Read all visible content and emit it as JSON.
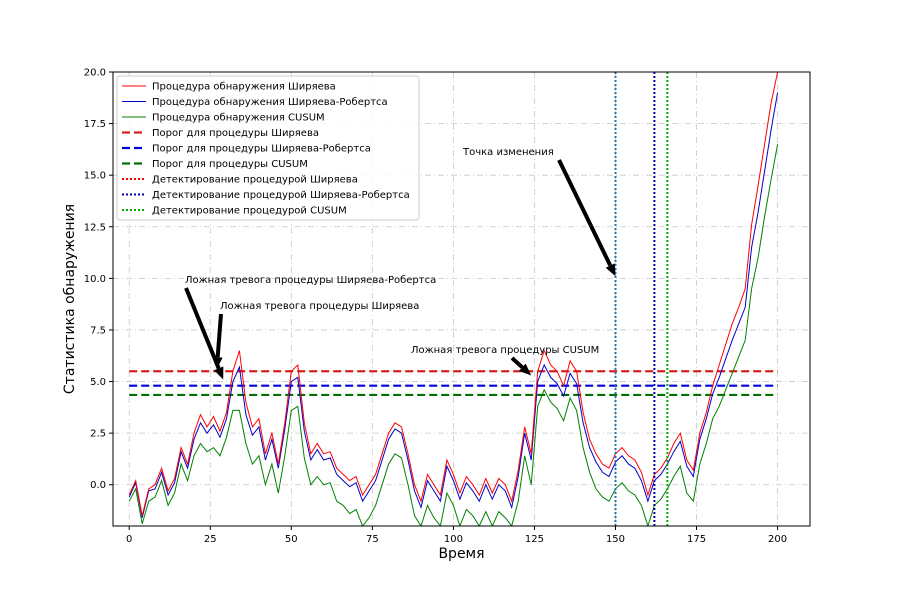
{
  "chart_data": {
    "type": "line",
    "title": "",
    "xlabel": "Время",
    "ylabel": "Статистика обнаружения",
    "xlim": [
      -5,
      210
    ],
    "ylim": [
      -2,
      20
    ],
    "xticks": [
      0,
      25,
      50,
      75,
      100,
      125,
      150,
      175,
      200
    ],
    "yticks": [
      0.0,
      2.5,
      5.0,
      7.5,
      10.0,
      12.5,
      15.0,
      17.5,
      20.0
    ],
    "ytick_labels": [
      "0.0",
      "2.5",
      "5.0",
      "7.5",
      "10.0",
      "12.5",
      "15.0",
      "17.5",
      "20.0"
    ],
    "grid": true,
    "legend_position": "top-left",
    "x": [
      0,
      2,
      4,
      6,
      8,
      10,
      12,
      14,
      16,
      18,
      20,
      22,
      24,
      26,
      28,
      30,
      32,
      34,
      36,
      38,
      40,
      42,
      44,
      46,
      48,
      50,
      52,
      54,
      56,
      58,
      60,
      62,
      64,
      66,
      68,
      70,
      72,
      74,
      76,
      78,
      80,
      82,
      84,
      86,
      88,
      90,
      92,
      94,
      96,
      98,
      100,
      102,
      104,
      106,
      108,
      110,
      112,
      114,
      116,
      118,
      120,
      122,
      124,
      126,
      128,
      130,
      132,
      134,
      136,
      138,
      140,
      142,
      144,
      146,
      148,
      150,
      152,
      154,
      156,
      158,
      160,
      162,
      164,
      166,
      168,
      170,
      172,
      174,
      176,
      178,
      180,
      182,
      184,
      186,
      188,
      190,
      192,
      194,
      196,
      198,
      200
    ],
    "series": [
      {
        "name": "Процедура обнаружения Ширяева",
        "color": "#ff0000",
        "style": "solid",
        "values": [
          -0.5,
          0.2,
          -1.5,
          -0.2,
          0.0,
          0.8,
          -0.3,
          0.3,
          1.8,
          1.0,
          2.5,
          3.4,
          2.8,
          3.3,
          2.6,
          3.5,
          5.5,
          6.5,
          4.0,
          2.8,
          3.2,
          1.5,
          2.5,
          1.0,
          3.0,
          5.5,
          5.8,
          3.0,
          1.5,
          2.0,
          1.5,
          1.6,
          0.8,
          0.5,
          0.2,
          0.4,
          -0.5,
          0.0,
          0.5,
          1.5,
          2.5,
          3.0,
          2.8,
          1.5,
          0.0,
          -0.8,
          0.5,
          0.0,
          -0.5,
          1.2,
          0.5,
          -0.4,
          0.4,
          0.0,
          -0.5,
          0.3,
          -0.4,
          0.3,
          0.0,
          -0.8,
          0.7,
          2.8,
          1.5,
          5.5,
          6.5,
          5.8,
          5.5,
          4.8,
          6.0,
          5.5,
          3.5,
          2.2,
          1.5,
          1.0,
          0.8,
          1.5,
          1.8,
          1.4,
          1.2,
          0.6,
          -0.5,
          0.5,
          0.8,
          1.3,
          2.0,
          2.5,
          1.2,
          0.7,
          2.5,
          3.5,
          4.8,
          5.8,
          6.8,
          7.8,
          8.6,
          9.5,
          12.6,
          14.5,
          16.5,
          18.5,
          20.0
        ]
      },
      {
        "name": "Процедура обнаружения Ширяева-Робертса",
        "color": "#0000cc",
        "style": "solid",
        "values": [
          -0.6,
          0.1,
          -1.6,
          -0.3,
          -0.2,
          0.6,
          -0.5,
          0.1,
          1.6,
          0.8,
          2.2,
          3.0,
          2.5,
          2.9,
          2.3,
          3.2,
          5.0,
          5.7,
          3.4,
          2.4,
          2.8,
          1.2,
          2.2,
          0.8,
          2.7,
          5.0,
          5.2,
          2.6,
          1.2,
          1.7,
          1.2,
          1.3,
          0.5,
          0.2,
          -0.1,
          0.1,
          -0.8,
          -0.3,
          0.2,
          1.2,
          2.2,
          2.7,
          2.5,
          1.2,
          -0.3,
          -1.1,
          0.2,
          -0.3,
          -0.8,
          0.9,
          0.2,
          -0.7,
          0.1,
          -0.3,
          -0.8,
          0.0,
          -0.7,
          0.0,
          -0.3,
          -1.1,
          0.4,
          2.5,
          1.2,
          5.0,
          5.8,
          5.2,
          4.9,
          4.3,
          5.4,
          4.9,
          3.0,
          1.8,
          1.1,
          0.6,
          0.4,
          1.1,
          1.4,
          1.0,
          0.8,
          0.2,
          -0.8,
          0.2,
          0.5,
          1.0,
          1.6,
          2.1,
          0.9,
          0.4,
          2.2,
          3.2,
          4.4,
          5.2,
          6.1,
          7.0,
          7.8,
          8.6,
          11.5,
          13.2,
          15.2,
          17.2,
          19.0
        ]
      },
      {
        "name": "Процедура обнаружения CUSUM",
        "color": "#008000",
        "style": "solid",
        "values": [
          -0.8,
          -0.2,
          -1.9,
          -0.8,
          -0.6,
          0.2,
          -1.0,
          -0.4,
          1.0,
          0.2,
          1.4,
          2.0,
          1.6,
          1.8,
          1.4,
          2.3,
          3.6,
          3.6,
          2.0,
          1.0,
          1.4,
          0.0,
          1.0,
          -0.4,
          1.4,
          3.6,
          3.8,
          1.3,
          0.0,
          0.4,
          0.0,
          0.1,
          -0.8,
          -1.0,
          -1.4,
          -1.2,
          -2.0,
          -1.6,
          -1.0,
          0.0,
          1.0,
          1.5,
          1.3,
          0.0,
          -1.5,
          -2.0,
          -1.0,
          -1.6,
          -2.0,
          -0.4,
          -1.0,
          -2.0,
          -1.2,
          -1.5,
          -2.0,
          -1.3,
          -2.0,
          -1.3,
          -1.6,
          -2.0,
          -0.8,
          1.4,
          0.0,
          3.8,
          4.6,
          4.0,
          3.7,
          3.1,
          4.2,
          3.6,
          1.8,
          0.6,
          -0.2,
          -0.6,
          -0.8,
          -0.2,
          0.1,
          -0.3,
          -0.5,
          -1.0,
          -2.0,
          -1.0,
          -0.7,
          -0.2,
          0.4,
          0.9,
          -0.4,
          -0.8,
          1.0,
          2.0,
          3.2,
          3.8,
          4.6,
          5.4,
          6.2,
          7.0,
          9.5,
          11.0,
          13.0,
          14.8,
          16.5
        ]
      }
    ],
    "thresholds": [
      {
        "name": "Порог для процедуры Ширяева",
        "value": 5.5,
        "color": "#d62020",
        "x_range": [
          0,
          200
        ]
      },
      {
        "name": "Порог для процедуры Ширяева-Робертса",
        "value": 4.8,
        "color": "#0000dd",
        "x_range": [
          0,
          200
        ]
      },
      {
        "name": "Порог для процедуры CUSUM",
        "value": 4.35,
        "color": "#007000",
        "x_range": [
          0,
          200
        ]
      }
    ],
    "detections": [
      {
        "name": "Детектирование процедурой Ширяева",
        "x": 150,
        "color": "#1f77b4"
      },
      {
        "name": "Детектирование процедурой Ширяева-Робертса",
        "x": 162,
        "color": "#0000aa"
      },
      {
        "name": "Детектирование процедурой CUSUM",
        "x": 166,
        "color": "#00aa00"
      }
    ],
    "legend": [
      {
        "label": "Процедура обнаружения Ширяева",
        "color": "#ff0000",
        "style": "solid"
      },
      {
        "label": "Процедура обнаружения Ширяева-Робертса",
        "color": "#0000cc",
        "style": "solid"
      },
      {
        "label": "Процедура обнаружения CUSUM",
        "color": "#008000",
        "style": "solid"
      },
      {
        "label": "Порог для процедуры Ширяева",
        "color": "#d62020",
        "style": "dashed"
      },
      {
        "label": "Порог для процедуры Ширяева-Робертса",
        "color": "#0000dd",
        "style": "dashed"
      },
      {
        "label": "Порог для процедуры CUSUM",
        "color": "#007000",
        "style": "dashed"
      },
      {
        "label": "Детектирование процедурой Ширяева",
        "color": "#ff0000",
        "style": "dotted"
      },
      {
        "label": "Детектирование процедурой Ширяева-Робертса",
        "color": "#0000aa",
        "style": "dotted"
      },
      {
        "label": "Детектирование процедурой CUSUM",
        "color": "#00aa00",
        "style": "dotted"
      }
    ],
    "annotations": [
      {
        "text": "Ложная тревога процедуры Ширяева-Робертса",
        "point": [
          29,
          5.1
        ]
      },
      {
        "text": "Ложная тревога процедуры Ширяева",
        "point": [
          27,
          5.6
        ]
      },
      {
        "text": "Ложная тревога процедуры CUSUM",
        "point": [
          124,
          5.3
        ]
      },
      {
        "text": "Точка изменения",
        "point": [
          150,
          10.1
        ]
      }
    ]
  }
}
